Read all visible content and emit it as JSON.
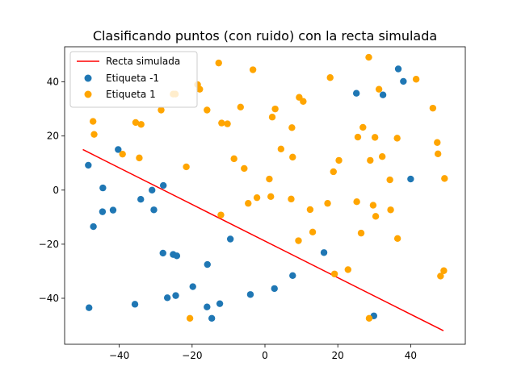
{
  "chart_data": {
    "type": "scatter",
    "title": "Clasificando puntos (con ruido) con la recta simulada",
    "xlabel": "",
    "ylabel": "",
    "xlim": [
      -55,
      55
    ],
    "ylim": [
      -57,
      53
    ],
    "xticks": [
      -40,
      -20,
      0,
      20,
      40
    ],
    "yticks": [
      -40,
      -20,
      0,
      20,
      40
    ],
    "xtick_labels": [
      "−40",
      "−20",
      "0",
      "20",
      "40"
    ],
    "ytick_labels": [
      "−40",
      "−20",
      "0",
      "20",
      "40"
    ],
    "grid": false,
    "legend_position": "upper-left",
    "line": {
      "name": "Recta simulada",
      "color": "#ff0000",
      "x": [
        -50,
        49
      ],
      "y": [
        15,
        -52
      ]
    },
    "series": [
      {
        "name": "Etiqueta -1",
        "color": "#1f77b4",
        "points": [
          [
            -48.5,
            9.2
          ],
          [
            -48.3,
            -43.5
          ],
          [
            -47.1,
            -13.5
          ],
          [
            -44.5,
            0.8
          ],
          [
            -44.6,
            -8
          ],
          [
            -41.7,
            -7.4
          ],
          [
            -40.3,
            15
          ],
          [
            -35.7,
            -42.2
          ],
          [
            -34.1,
            -3.4
          ],
          [
            -31,
            0
          ],
          [
            -30.5,
            -7.3
          ],
          [
            -27.9,
            1.7
          ],
          [
            -28,
            -23.3
          ],
          [
            -26.8,
            -39.8
          ],
          [
            -25.2,
            -23.8
          ],
          [
            -24.2,
            -24.3
          ],
          [
            -24.5,
            -39
          ],
          [
            -19.8,
            -35.7
          ],
          [
            -15.8,
            -27.5
          ],
          [
            -15.9,
            -43.2
          ],
          [
            -14.6,
            -47.4
          ],
          [
            -12.4,
            -42
          ],
          [
            -9.5,
            -18.1
          ],
          [
            -4,
            -38.6
          ],
          [
            2.6,
            -36.4
          ],
          [
            7.6,
            -31.6
          ],
          [
            16.2,
            -23.1
          ],
          [
            25.1,
            35.8
          ],
          [
            32.4,
            35.2
          ],
          [
            36.6,
            44.8
          ],
          [
            38,
            40.2
          ],
          [
            40,
            4.1
          ],
          [
            29.9,
            -46.5
          ]
        ]
      },
      {
        "name": "Etiqueta 1",
        "color": "#ffa500",
        "points": [
          [
            -47.2,
            25.4
          ],
          [
            -46.9,
            20.6
          ],
          [
            -39.1,
            13.3
          ],
          [
            -35.5,
            25
          ],
          [
            -34.5,
            11.9
          ],
          [
            -34,
            24.3
          ],
          [
            -28.5,
            29.6
          ],
          [
            -25.2,
            35.5
          ],
          [
            -24.6,
            35.5
          ],
          [
            -21.6,
            8.6
          ],
          [
            -20.6,
            -47.4
          ],
          [
            -18.5,
            39
          ],
          [
            -17.9,
            37.3
          ],
          [
            -15.9,
            29.6
          ],
          [
            -12.7,
            47
          ],
          [
            -11.9,
            24.8
          ],
          [
            -12.1,
            -9.2
          ],
          [
            -10.3,
            24.5
          ],
          [
            -8.5,
            11.6
          ],
          [
            -6.7,
            30.7
          ],
          [
            -5.7,
            8
          ],
          [
            -4.6,
            -4.9
          ],
          [
            -3.3,
            44.5
          ],
          [
            -2.2,
            -2.8
          ],
          [
            1.2,
            4.1
          ],
          [
            1.6,
            -2.4
          ],
          [
            2,
            27
          ],
          [
            2.8,
            30
          ],
          [
            4.4,
            15.2
          ],
          [
            7.2,
            -3.3
          ],
          [
            7.4,
            23.1
          ],
          [
            7.6,
            12.2
          ],
          [
            9.2,
            -18.7
          ],
          [
            9.4,
            34.3
          ],
          [
            10.5,
            32.8
          ],
          [
            12.4,
            -7.2
          ],
          [
            13.1,
            -15.5
          ],
          [
            17.2,
            -4.9
          ],
          [
            17.9,
            41.6
          ],
          [
            18.8,
            6.8
          ],
          [
            19.1,
            -31
          ],
          [
            20.3,
            11
          ],
          [
            22.8,
            -29.4
          ],
          [
            25.2,
            -4.3
          ],
          [
            25.5,
            19.6
          ],
          [
            26.4,
            -15.9
          ],
          [
            26.9,
            23.2
          ],
          [
            28.5,
            49.1
          ],
          [
            28.6,
            -47.4
          ],
          [
            28.9,
            11
          ],
          [
            29.7,
            -5.6
          ],
          [
            30.2,
            19.5
          ],
          [
            30.4,
            -9.7
          ],
          [
            31.3,
            37.3
          ],
          [
            32.2,
            12.4
          ],
          [
            34.3,
            3.8
          ],
          [
            34.5,
            -7.3
          ],
          [
            36.3,
            19.2
          ],
          [
            36.4,
            -17.9
          ],
          [
            41.5,
            41
          ],
          [
            46.1,
            30.3
          ],
          [
            47.3,
            17.6
          ],
          [
            47.5,
            13.4
          ],
          [
            48.2,
            -31.8
          ],
          [
            49.1,
            -29.8
          ],
          [
            49.3,
            4.3
          ]
        ]
      }
    ]
  }
}
